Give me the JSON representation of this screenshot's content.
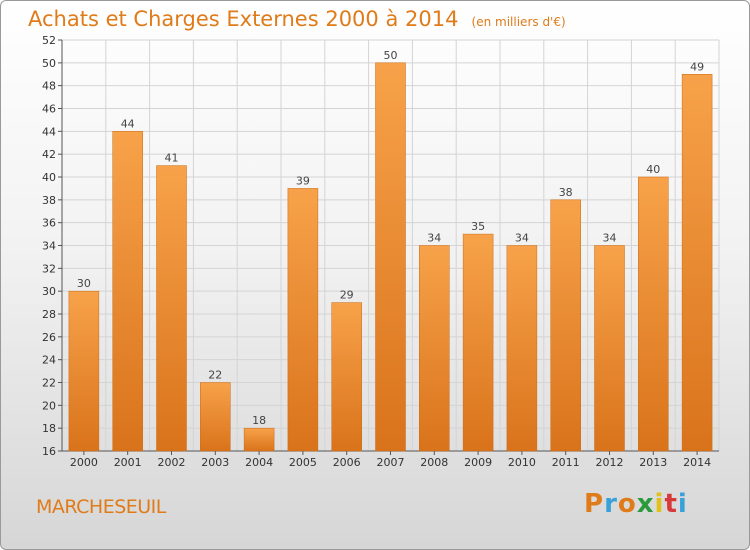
{
  "chart_data": {
    "type": "bar",
    "title": "Achats et Charges Externes 2000 à 2014",
    "subtitle": "(en milliers d'€)",
    "categories": [
      "2000",
      "2001",
      "2002",
      "2003",
      "2004",
      "2005",
      "2006",
      "2007",
      "2008",
      "2009",
      "2010",
      "2011",
      "2012",
      "2013",
      "2014"
    ],
    "values": [
      30,
      44,
      41,
      22,
      18,
      39,
      29,
      50,
      34,
      35,
      34,
      38,
      34,
      40,
      49
    ],
    "ylim": [
      16,
      52
    ],
    "yticks": [
      16,
      18,
      20,
      22,
      24,
      26,
      28,
      30,
      32,
      34,
      36,
      38,
      40,
      42,
      44,
      46,
      48,
      50,
      52
    ],
    "grid": true,
    "bar_color": "#f0902a"
  },
  "footer": {
    "commune": "MARCHESEUIL",
    "logo": "Proxiti",
    "logo_colors": [
      "#e07b1a",
      "#3aa0d8",
      "#e07b1a",
      "#2b9a3c",
      "#e0c11a",
      "#d83a3a",
      "#3aa0d8"
    ]
  }
}
